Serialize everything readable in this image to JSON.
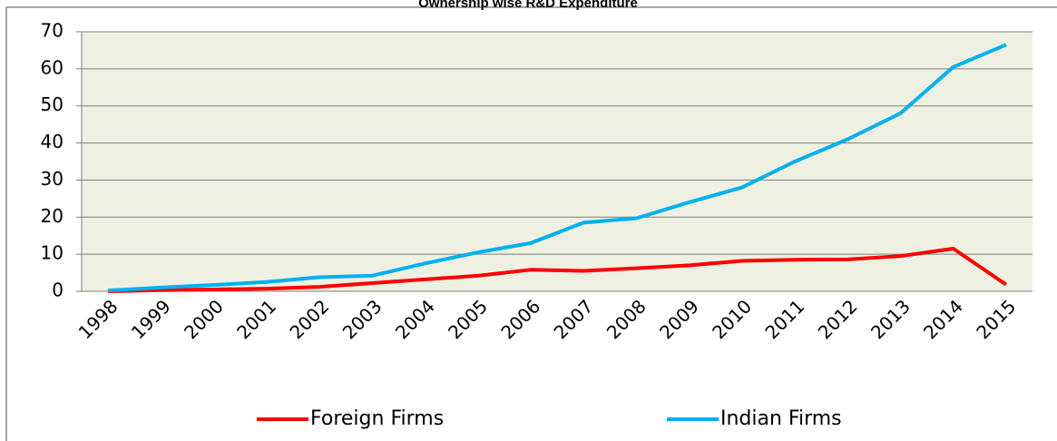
{
  "chart_data": {
    "type": "line",
    "title": "Ownership wise R&D Expenditure",
    "categories": [
      "1998",
      "1999",
      "2000",
      "2001",
      "2002",
      "2003",
      "2004",
      "2005",
      "2006",
      "2007",
      "2008",
      "2009",
      "2010",
      "2011",
      "2012",
      "2013",
      "2014",
      "2015"
    ],
    "series": [
      {
        "name": "Foreign Firms",
        "color": "#ff0000",
        "values": [
          0,
          0.3,
          0.5,
          0.7,
          1.2,
          2.2,
          3.2,
          4.2,
          5.8,
          5.5,
          6.2,
          7,
          8.2,
          8.5,
          8.6,
          9.5,
          11.5,
          1.8
        ]
      },
      {
        "name": "Indian Firms",
        "color": "#00b0f0",
        "values": [
          0.2,
          1,
          1.7,
          2.5,
          3.8,
          4.2,
          7.5,
          10.5,
          13,
          18.5,
          19.7,
          24,
          28,
          35,
          41,
          48,
          60.5,
          66.5
        ]
      }
    ],
    "ylim": [
      0,
      70
    ],
    "yticks": [
      0,
      10,
      20,
      30,
      40,
      50,
      60,
      70
    ],
    "grid": true,
    "legend": "bottom"
  }
}
